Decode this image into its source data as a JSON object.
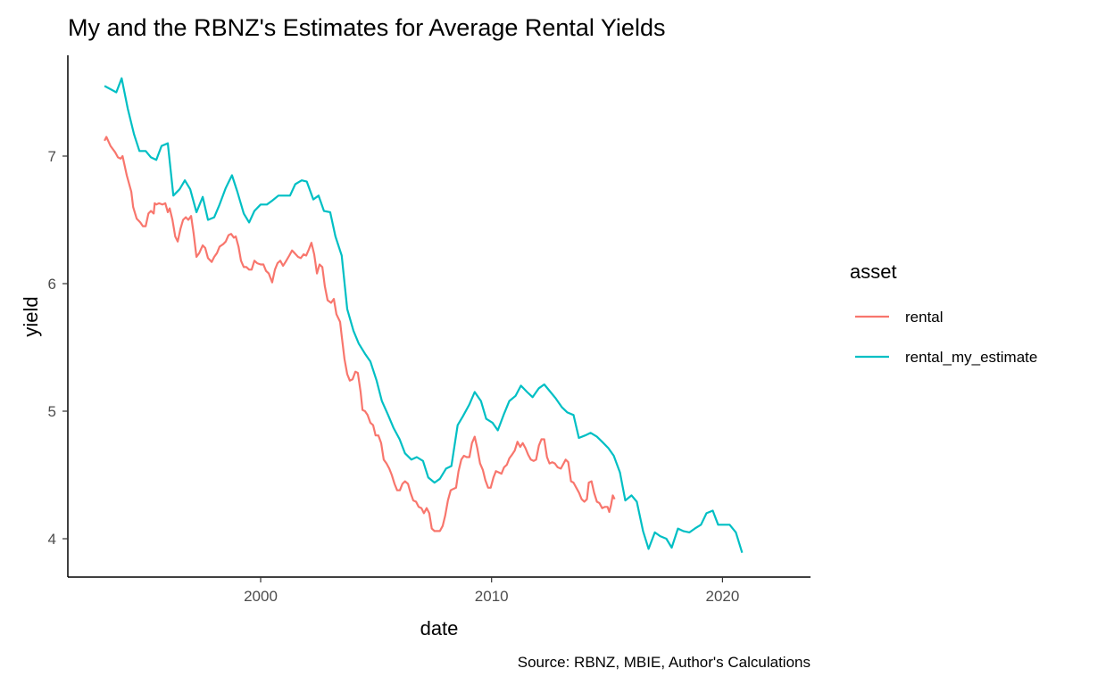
{
  "chart_data": {
    "type": "line",
    "title": "My and the RBNZ's Estimates for Average Rental Yields",
    "xlabel": "date",
    "ylabel": "yield",
    "caption": "Source: RBNZ, MBIE, Author's Calculations",
    "xlim": [
      1991.8,
      2023.9
    ],
    "ylim": [
      3.7,
      7.8
    ],
    "x_ticks": [
      2000,
      2010,
      2020
    ],
    "x_tick_labels": [
      "2000",
      "2010",
      "2020"
    ],
    "y_ticks": [
      4,
      5,
      6,
      7
    ],
    "y_tick_labels": [
      "4",
      "5",
      "6",
      "7"
    ],
    "grid": false,
    "legend": {
      "title": "asset",
      "position": "right"
    },
    "series": [
      {
        "name": "rental",
        "color": "#F8766D",
        "x": [
          1993.24,
          1993.32,
          1993.5,
          1993.7,
          1993.82,
          1993.94,
          1994.02,
          1994.2,
          1994.4,
          1994.48,
          1994.63,
          1994.79,
          1994.9,
          1995.02,
          1995.14,
          1995.25,
          1995.37,
          1995.41,
          1995.48,
          1995.6,
          1995.75,
          1995.87,
          1995.98,
          1996.06,
          1996.18,
          1996.3,
          1996.41,
          1996.53,
          1996.64,
          1996.76,
          1996.87,
          1996.99,
          1997.1,
          1997.22,
          1997.34,
          1997.49,
          1997.6,
          1997.72,
          1997.88,
          1997.99,
          1998.11,
          1998.22,
          1998.38,
          1998.49,
          1998.61,
          1998.72,
          1998.84,
          1998.92,
          1999.04,
          1999.15,
          1999.27,
          1999.38,
          1999.5,
          1999.61,
          1999.73,
          1999.85,
          2000.0,
          2000.12,
          2000.23,
          2000.35,
          2000.5,
          2000.62,
          2000.73,
          2000.85,
          2000.97,
          2001.08,
          2001.24,
          2001.36,
          2001.47,
          2001.62,
          2001.74,
          2001.86,
          2001.97,
          2002.09,
          2002.2,
          2002.32,
          2002.44,
          2002.55,
          2002.67,
          2002.78,
          2002.9,
          2003.05,
          2003.17,
          2003.28,
          2003.44,
          2003.51,
          2003.63,
          2003.75,
          2003.86,
          2003.98,
          2004.1,
          2004.21,
          2004.33,
          2004.41,
          2004.52,
          2004.63,
          2004.75,
          2004.87,
          2004.98,
          2005.1,
          2005.22,
          2005.33,
          2005.45,
          2005.57,
          2005.68,
          2005.8,
          2005.91,
          2006.03,
          2006.14,
          2006.25,
          2006.38,
          2006.49,
          2006.61,
          2006.73,
          2006.84,
          2006.96,
          2007.07,
          2007.19,
          2007.3,
          2007.41,
          2007.53,
          2007.65,
          2007.76,
          2007.88,
          2007.99,
          2008.11,
          2008.23,
          2008.34,
          2008.46,
          2008.57,
          2008.69,
          2008.8,
          2008.92,
          2009.04,
          2009.15,
          2009.27,
          2009.38,
          2009.5,
          2009.62,
          2009.73,
          2009.85,
          2009.96,
          2010.08,
          2010.19,
          2010.31,
          2010.43,
          2010.54,
          2010.66,
          2010.77,
          2010.89,
          2011.0,
          2011.12,
          2011.24,
          2011.35,
          2011.47,
          2011.58,
          2011.7,
          2011.82,
          2011.93,
          2012.05,
          2012.16,
          2012.28,
          2012.4,
          2012.51,
          2012.63,
          2012.74,
          2012.86,
          2013.0,
          2013.09,
          2013.21,
          2013.32,
          2013.44,
          2013.55,
          2013.67,
          2013.79,
          2013.9,
          2014.02,
          2014.13,
          2014.21,
          2014.33,
          2014.44,
          2014.56,
          2014.67,
          2014.79,
          2014.91,
          2015.02,
          2015.1,
          2015.17,
          2015.25,
          2015.33
        ],
        "y": [
          7.12,
          7.15,
          7.08,
          7.03,
          6.99,
          6.98,
          7.0,
          6.85,
          6.72,
          6.6,
          6.51,
          6.48,
          6.45,
          6.45,
          6.55,
          6.57,
          6.55,
          6.63,
          6.62,
          6.63,
          6.62,
          6.63,
          6.56,
          6.59,
          6.5,
          6.37,
          6.33,
          6.43,
          6.5,
          6.52,
          6.5,
          6.53,
          6.39,
          6.21,
          6.24,
          6.3,
          6.28,
          6.2,
          6.17,
          6.21,
          6.24,
          6.29,
          6.31,
          6.33,
          6.38,
          6.39,
          6.36,
          6.37,
          6.29,
          6.18,
          6.13,
          6.13,
          6.11,
          6.11,
          6.18,
          6.16,
          6.15,
          6.15,
          6.1,
          6.08,
          6.01,
          6.11,
          6.16,
          6.18,
          6.14,
          6.17,
          6.22,
          6.26,
          6.24,
          6.21,
          6.2,
          6.23,
          6.22,
          6.27,
          6.32,
          6.23,
          6.08,
          6.15,
          6.13,
          5.98,
          5.87,
          5.85,
          5.88,
          5.76,
          5.7,
          5.59,
          5.41,
          5.29,
          5.24,
          5.25,
          5.31,
          5.3,
          5.15,
          5.01,
          5.0,
          4.97,
          4.91,
          4.89,
          4.81,
          4.81,
          4.75,
          4.62,
          4.59,
          4.55,
          4.5,
          4.43,
          4.38,
          4.38,
          4.43,
          4.45,
          4.43,
          4.36,
          4.3,
          4.29,
          4.25,
          4.24,
          4.2,
          4.24,
          4.2,
          4.08,
          4.06,
          4.06,
          4.06,
          4.1,
          4.18,
          4.3,
          4.38,
          4.39,
          4.4,
          4.53,
          4.62,
          4.65,
          4.64,
          4.64,
          4.75,
          4.8,
          4.71,
          4.59,
          4.54,
          4.46,
          4.4,
          4.4,
          4.48,
          4.53,
          4.52,
          4.51,
          4.56,
          4.58,
          4.63,
          4.66,
          4.69,
          4.76,
          4.72,
          4.75,
          4.71,
          4.66,
          4.62,
          4.61,
          4.62,
          4.73,
          4.78,
          4.78,
          4.64,
          4.59,
          4.6,
          4.59,
          4.56,
          4.55,
          4.58,
          4.62,
          4.6,
          4.45,
          4.44,
          4.4,
          4.36,
          4.31,
          4.29,
          4.31,
          4.44,
          4.45,
          4.36,
          4.29,
          4.28,
          4.24,
          4.25,
          4.25,
          4.21,
          4.26,
          4.34,
          4.31
        ]
      },
      {
        "name": "rental_my_estimate",
        "color": "#00BFC4",
        "x": [
          1993.24,
          1993.75,
          1993.98,
          1994.25,
          1994.52,
          1994.75,
          1995.02,
          1995.25,
          1995.48,
          1995.71,
          1995.98,
          1996.22,
          1996.49,
          1996.72,
          1996.95,
          1997.22,
          1997.49,
          1997.72,
          1997.99,
          1998.22,
          1998.49,
          1998.76,
          1998.99,
          1999.27,
          1999.5,
          1999.73,
          2000.0,
          2000.27,
          2000.5,
          2000.77,
          2001.0,
          2001.27,
          2001.5,
          2001.78,
          2002.0,
          2002.28,
          2002.51,
          2002.74,
          2003.01,
          2003.24,
          2003.51,
          2003.75,
          2004.02,
          2004.25,
          2004.52,
          2004.75,
          2005.02,
          2005.25,
          2005.52,
          2005.75,
          2006.02,
          2006.25,
          2006.53,
          2006.76,
          2007.03,
          2007.26,
          2007.53,
          2007.76,
          2008.03,
          2008.26,
          2008.53,
          2008.76,
          2009.03,
          2009.27,
          2009.54,
          2009.77,
          2010.04,
          2010.27,
          2010.54,
          2010.77,
          2011.04,
          2011.27,
          2011.54,
          2011.78,
          2012.05,
          2012.28,
          2012.55,
          2012.78,
          2013.05,
          2013.28,
          2013.55,
          2013.78,
          2014.05,
          2014.29,
          2014.56,
          2014.79,
          2015.06,
          2015.29,
          2015.56,
          2015.79,
          2016.06,
          2016.29,
          2016.56,
          2016.8,
          2017.07,
          2017.3,
          2017.57,
          2017.8,
          2018.07,
          2018.3,
          2018.57,
          2018.8,
          2019.07,
          2019.31,
          2019.58,
          2019.81,
          2020.08,
          2020.31,
          2020.58,
          2020.85
        ],
        "y": [
          7.55,
          7.5,
          7.61,
          7.37,
          7.17,
          7.04,
          7.04,
          6.99,
          6.97,
          7.08,
          7.1,
          6.69,
          6.74,
          6.81,
          6.74,
          6.56,
          6.68,
          6.5,
          6.52,
          6.62,
          6.75,
          6.85,
          6.72,
          6.55,
          6.48,
          6.57,
          6.62,
          6.62,
          6.65,
          6.69,
          6.69,
          6.69,
          6.78,
          6.81,
          6.8,
          6.66,
          6.69,
          6.57,
          6.56,
          6.37,
          6.22,
          5.8,
          5.63,
          5.53,
          5.45,
          5.39,
          5.24,
          5.08,
          4.97,
          4.87,
          4.78,
          4.67,
          4.62,
          4.64,
          4.61,
          4.48,
          4.44,
          4.47,
          4.55,
          4.57,
          4.89,
          4.96,
          5.05,
          5.15,
          5.08,
          4.94,
          4.91,
          4.85,
          4.98,
          5.08,
          5.12,
          5.2,
          5.15,
          5.11,
          5.18,
          5.21,
          5.15,
          5.1,
          5.03,
          4.99,
          4.97,
          4.79,
          4.81,
          4.83,
          4.8,
          4.76,
          4.71,
          4.65,
          4.52,
          4.3,
          4.34,
          4.29,
          4.06,
          3.92,
          4.05,
          4.02,
          4.0,
          3.93,
          4.08,
          4.06,
          4.05,
          4.08,
          4.11,
          4.2,
          4.22,
          4.11,
          4.11,
          4.11,
          4.05,
          3.89
        ]
      }
    ]
  }
}
